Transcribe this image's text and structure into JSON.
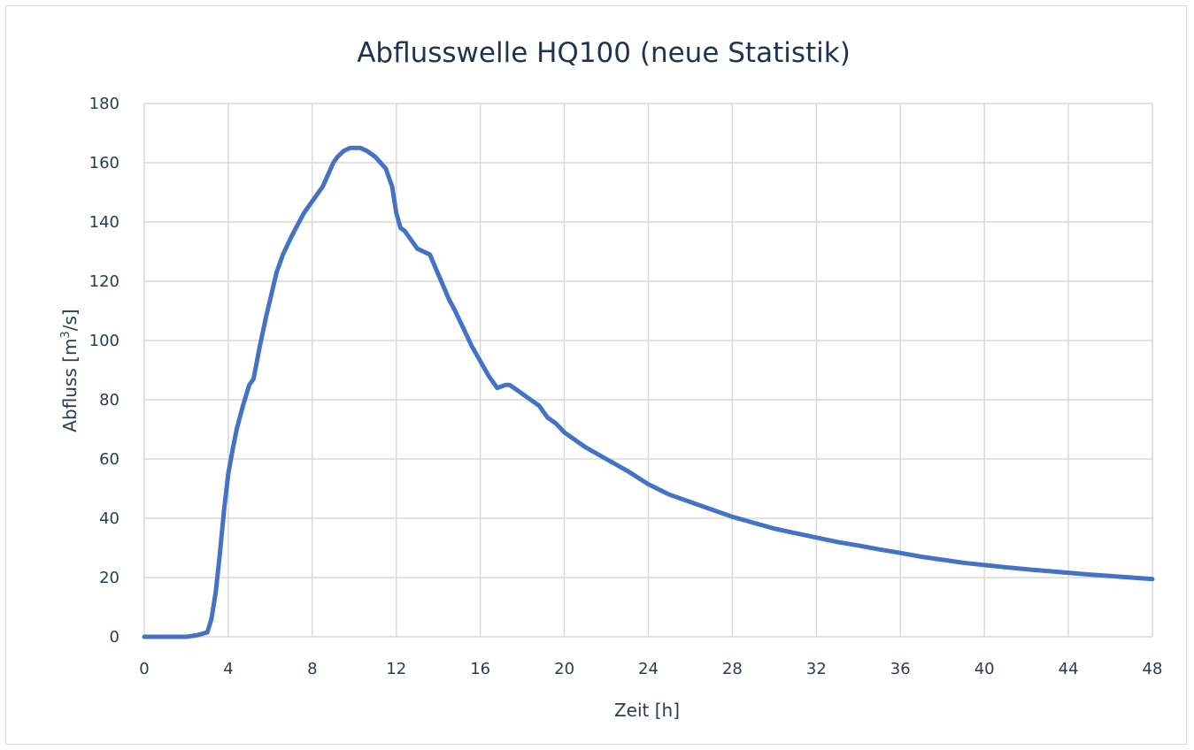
{
  "chart_data": {
    "type": "line",
    "title": "Abflusswelle HQ100 (neue Statistik)",
    "xlabel": "Zeit [h]",
    "ylabel_text": "Abfluss [m",
    "ylabel_sup": "3",
    "ylabel_end": "/s]",
    "xlim": [
      0,
      48
    ],
    "ylim": [
      0,
      180
    ],
    "x_ticks": [
      "0",
      "4",
      "8",
      "12",
      "16",
      "20",
      "24",
      "28",
      "32",
      "36",
      "40",
      "44",
      "48"
    ],
    "y_ticks": [
      "0",
      "20",
      "40",
      "60",
      "80",
      "100",
      "120",
      "140",
      "160",
      "180"
    ],
    "grid": true,
    "series_color": "#4472c4",
    "series": [
      {
        "x": [
          0,
          1,
          2,
          2.5,
          3,
          3.2,
          3.4,
          3.6,
          3.8,
          4,
          4.2,
          4.4,
          4.7,
          5,
          5.2,
          5.5,
          5.8,
          6,
          6.3,
          6.6,
          7,
          7.3,
          7.6,
          8,
          8.5,
          9,
          9.2,
          9.5,
          9.8,
          10,
          10.3,
          10.6,
          11,
          11.5,
          11.8,
          12,
          12.2,
          12.4,
          12.6,
          12.8,
          13,
          13.3,
          13.6,
          13.9,
          14.2,
          14.5,
          14.8,
          15.2,
          15.6,
          16,
          16.4,
          16.8,
          17.2,
          17.4,
          17.6,
          17.8,
          18,
          18.4,
          18.8,
          19.2,
          19.6,
          20,
          21,
          22,
          23,
          24,
          25,
          26,
          27,
          28,
          29,
          30,
          31,
          32,
          33,
          34,
          35,
          36,
          37,
          38,
          39,
          40,
          41,
          42,
          43,
          44,
          45,
          46,
          47,
          48
        ],
        "y": [
          0,
          0,
          0,
          0.5,
          1.5,
          6,
          15,
          28,
          43,
          55,
          63,
          70,
          78,
          85,
          87,
          98,
          108,
          114,
          123,
          129,
          135,
          139,
          143,
          147,
          152,
          160,
          162,
          164,
          165,
          165,
          165,
          164,
          162,
          158,
          152,
          143,
          138,
          137,
          135,
          133,
          131,
          130,
          129,
          124,
          119,
          114,
          110,
          104,
          98,
          93,
          88,
          84,
          85,
          85,
          84,
          83,
          82,
          80,
          78,
          74,
          72,
          69,
          64,
          60,
          56,
          51.5,
          48,
          45.5,
          43,
          40.5,
          38.5,
          36.5,
          35,
          33.5,
          32,
          30.8,
          29.5,
          28.3,
          27,
          26,
          25,
          24.2,
          23.5,
          22.8,
          22.2,
          21.6,
          21,
          20.5,
          20,
          19.5
        ]
      }
    ]
  }
}
